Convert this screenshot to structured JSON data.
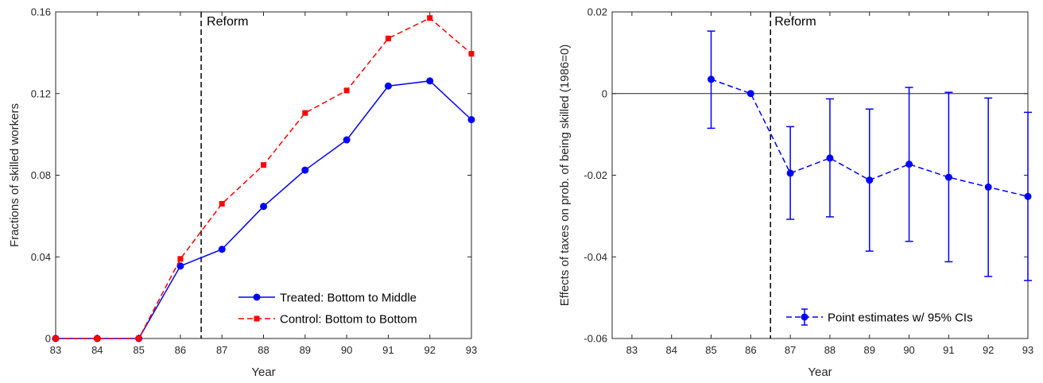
{
  "chart_data": [
    {
      "type": "line",
      "xlabel": "Year",
      "ylabel": "Fractions of skilled workers",
      "x": [
        83,
        84,
        85,
        86,
        87,
        88,
        89,
        90,
        91,
        92,
        93
      ],
      "xticks": [
        "83",
        "84",
        "85",
        "86",
        "87",
        "88",
        "89",
        "90",
        "91",
        "92",
        "93"
      ],
      "ylim": [
        0,
        0.16
      ],
      "yticks": [
        "0",
        "0.04",
        "0.08",
        "0.12",
        "0.16"
      ],
      "ytick_values": [
        0,
        0.04,
        0.08,
        0.12,
        0.16
      ],
      "reform_x": 86.5,
      "reform_label": "Reform",
      "legend_placement": "bottom-right",
      "series": [
        {
          "name": "Treated: Bottom to Middle",
          "color": "#0000ff",
          "style": "solid",
          "marker": "circle",
          "values": [
            0,
            0,
            0,
            0.0355,
            0.0437,
            0.0647,
            0.0825,
            0.0973,
            0.1237,
            0.1262,
            0.1072
          ]
        },
        {
          "name": "Control: Bottom to Bottom",
          "color": "#ff0000",
          "style": "dashed",
          "marker": "square",
          "values": [
            0,
            0,
            0,
            0.039,
            0.066,
            0.085,
            0.1105,
            0.1215,
            0.147,
            0.157,
            0.1395
          ]
        }
      ]
    },
    {
      "type": "errorbar",
      "xlabel": "Year",
      "ylabel": "Effects of taxes on prob. of being skilled (1986=0)",
      "x": [
        85,
        86,
        87,
        88,
        89,
        90,
        91,
        92,
        93
      ],
      "xlim": [
        82.5,
        93
      ],
      "xticks": [
        "83",
        "84",
        "85",
        "86",
        "87",
        "88",
        "89",
        "90",
        "91",
        "92",
        "93"
      ],
      "xtick_values": [
        83,
        84,
        85,
        86,
        87,
        88,
        89,
        90,
        91,
        92,
        93
      ],
      "ylim": [
        -0.06,
        0.02
      ],
      "yticks": [
        "-0.06",
        "-0.04",
        "-0.02",
        "0",
        "0.02"
      ],
      "ytick_values": [
        -0.06,
        -0.04,
        -0.02,
        0,
        0.02
      ],
      "reform_x": 86.5,
      "reform_label": "Reform",
      "legend_placement": "bottom-right",
      "series": [
        {
          "name": "Point estimates w/ 95% CIs",
          "color": "#0000ff",
          "style": "dashed",
          "marker": "circle",
          "values": [
            0.0035,
            0,
            -0.0195,
            -0.0158,
            -0.0212,
            -0.0173,
            -0.0205,
            -0.0229,
            -0.0252
          ],
          "lower": [
            -0.0085,
            0,
            -0.0308,
            -0.0302,
            -0.0386,
            -0.0362,
            -0.0412,
            -0.0448,
            -0.0458
          ],
          "upper": [
            0.0153,
            0,
            -0.0081,
            -0.0013,
            -0.0038,
            0.0015,
            0.0003,
            -0.0011,
            -0.0046
          ]
        }
      ]
    }
  ]
}
